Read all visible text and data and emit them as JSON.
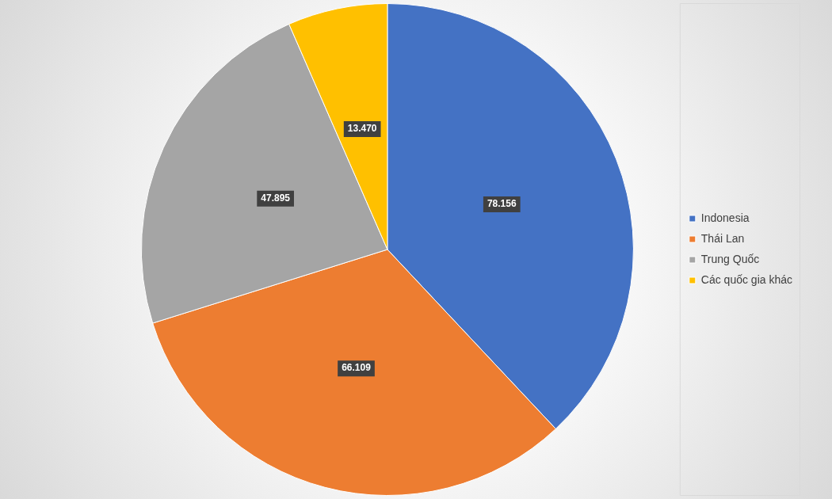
{
  "chart_data": {
    "type": "pie",
    "categories": [
      "Indonesia",
      "Thái Lan",
      "Trung Quốc",
      "Các quốc gia khác"
    ],
    "values": [
      78.156,
      66.109,
      47.895,
      13.47
    ],
    "value_labels": [
      "78.156",
      "66.109",
      "47.895",
      "13.470"
    ],
    "colors": [
      "#4472c4",
      "#ed7d31",
      "#a5a5a5",
      "#ffc000"
    ],
    "legend": "right"
  }
}
